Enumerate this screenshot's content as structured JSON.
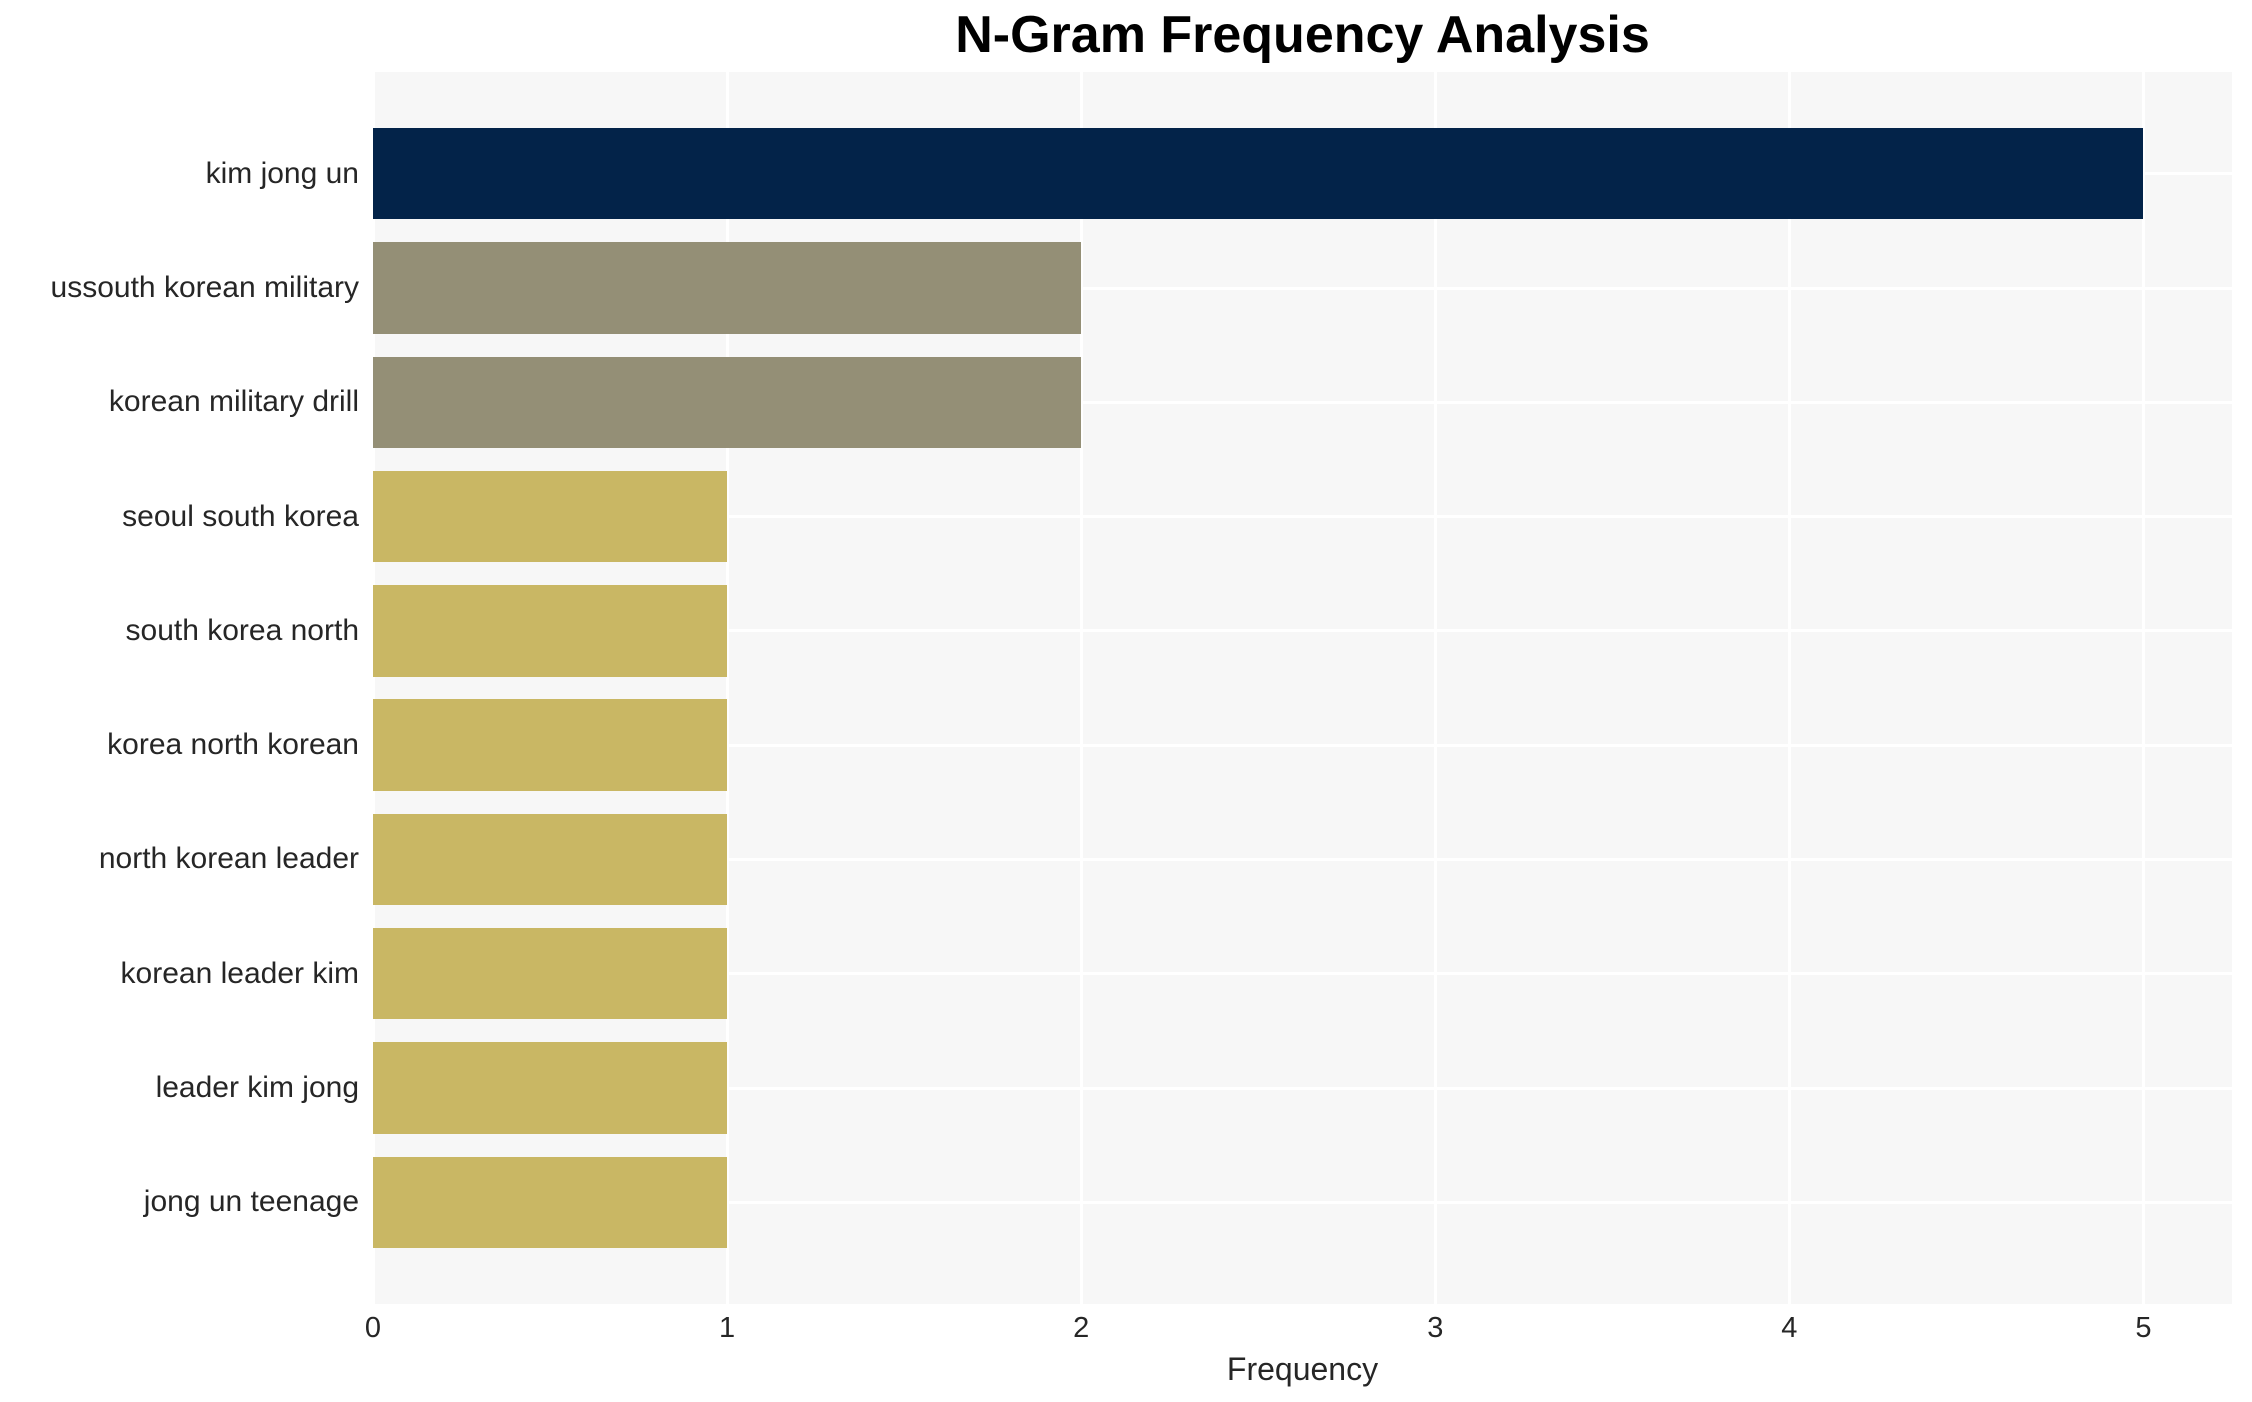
{
  "title": "N-Gram Frequency Analysis",
  "chart_data": {
    "type": "bar",
    "orientation": "horizontal",
    "title": "N-Gram Frequency Analysis",
    "xlabel": "Frequency",
    "ylabel": "",
    "categories": [
      "kim jong un",
      "ussouth korean military",
      "korean military drill",
      "seoul south korea",
      "south korea north",
      "korea north korean",
      "north korean leader",
      "korean leader kim",
      "leader kim jong",
      "jong un teenage"
    ],
    "values": [
      5,
      2,
      2,
      1,
      1,
      1,
      1,
      1,
      1,
      1
    ],
    "bar_colors": [
      "#032349",
      "#948f76",
      "#948f76",
      "#c9b764",
      "#c9b764",
      "#c9b764",
      "#c9b764",
      "#c9b764",
      "#c9b764",
      "#c9b764"
    ],
    "x_ticks": [
      0,
      1,
      2,
      3,
      4,
      5
    ],
    "xlim": [
      0,
      5.25
    ],
    "grid": true,
    "legend": false,
    "plot_background": "#f7f7f7",
    "grid_color": "#ffffff",
    "figure_background": "#ffffff",
    "text_color": "#262626"
  }
}
